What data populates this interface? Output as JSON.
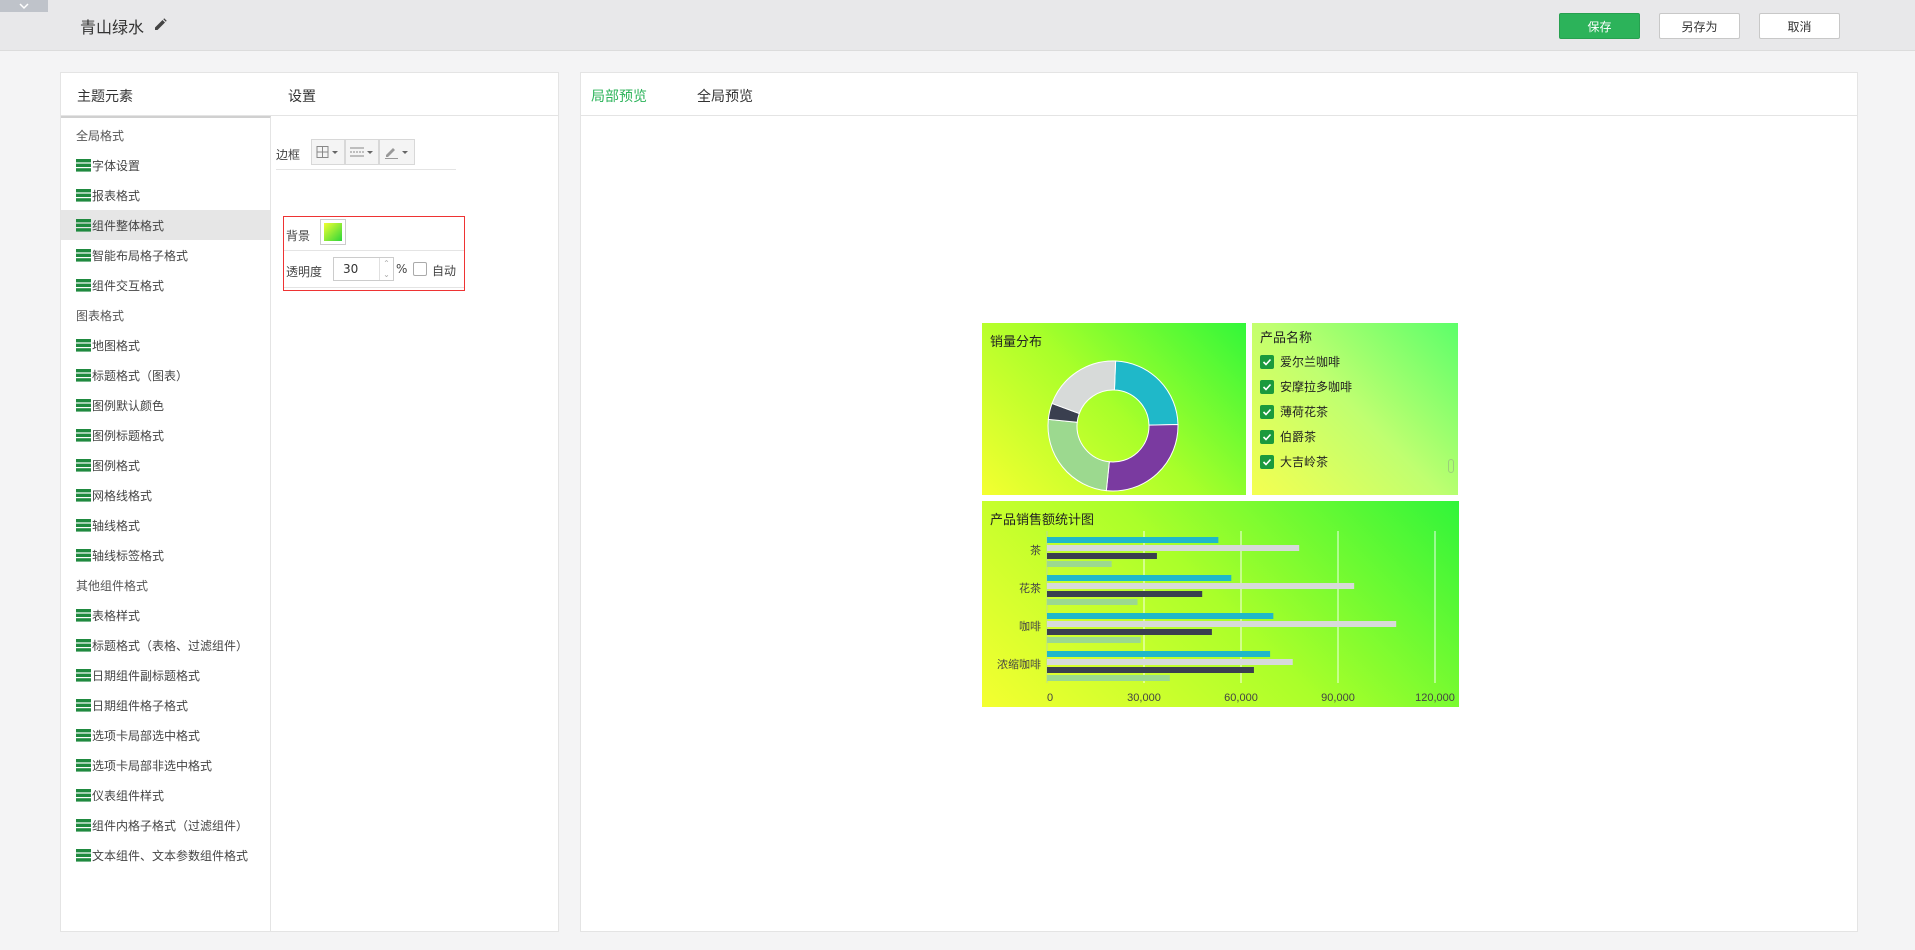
{
  "header": {
    "title": "青山绿水",
    "save_label": "保存",
    "save_as_label": "另存为",
    "cancel_label": "取消"
  },
  "left_panel": {
    "elements_header": "主题元素",
    "settings_header": "设置"
  },
  "tree": [
    {
      "label": "全局格式",
      "type": "group"
    },
    {
      "label": "字体设置",
      "type": "leaf"
    },
    {
      "label": "报表格式",
      "type": "leaf"
    },
    {
      "label": "组件整体格式",
      "type": "leaf",
      "selected": true
    },
    {
      "label": "智能布局格子格式",
      "type": "leaf"
    },
    {
      "label": "组件交互格式",
      "type": "leaf"
    },
    {
      "label": "图表格式",
      "type": "group"
    },
    {
      "label": "地图格式",
      "type": "leaf"
    },
    {
      "label": "标题格式（图表）",
      "type": "leaf"
    },
    {
      "label": "图例默认颜色",
      "type": "leaf"
    },
    {
      "label": "图例标题格式",
      "type": "leaf"
    },
    {
      "label": "图例格式",
      "type": "leaf"
    },
    {
      "label": "网格线格式",
      "type": "leaf"
    },
    {
      "label": "轴线格式",
      "type": "leaf"
    },
    {
      "label": "轴线标签格式",
      "type": "leaf"
    },
    {
      "label": "其他组件格式",
      "type": "group"
    },
    {
      "label": "表格样式",
      "type": "leaf"
    },
    {
      "label": "标题格式（表格、过滤组件）",
      "type": "leaf"
    },
    {
      "label": "日期组件副标题格式",
      "type": "leaf"
    },
    {
      "label": "日期组件格子格式",
      "type": "leaf"
    },
    {
      "label": "选项卡局部选中格式",
      "type": "leaf"
    },
    {
      "label": "选项卡局部非选中格式",
      "type": "leaf"
    },
    {
      "label": "仪表组件样式",
      "type": "leaf"
    },
    {
      "label": "组件内格子格式（过滤组件）",
      "type": "leaf"
    },
    {
      "label": "文本组件、文本参数组件格式",
      "type": "leaf"
    }
  ],
  "settings": {
    "border_label": "边框",
    "background_label": "背景",
    "opacity_label": "透明度",
    "opacity_value": "30",
    "percent_sign": "%",
    "auto_label": "自动",
    "auto_checked": false
  },
  "preview": {
    "tab_local": "局部预览",
    "tab_global": "全局预览",
    "pie_title": "销量分布",
    "filter_title": "产品名称",
    "filter_items": [
      "爱尔兰咖啡",
      "安摩拉多咖啡",
      "薄荷花茶",
      "伯爵茶",
      "大吉岭茶"
    ],
    "bar_title": "产品销售额统计图"
  },
  "colors": {
    "brand_green": "#2cb35a",
    "series_1": "#1fb8c9",
    "series_2": "#d7dad9",
    "series_3": "#3a3f4f",
    "series_4": "#9cd98f",
    "series_5": "#7a3aa0"
  },
  "chart_data": [
    {
      "type": "pie",
      "title": "销量分布",
      "donut": true,
      "slices": [
        {
          "color": "#1fb8c9",
          "value": 24
        },
        {
          "color": "#7a3aa0",
          "value": 27
        },
        {
          "color": "#9cd98f",
          "value": 25
        },
        {
          "color": "#3a3f4f",
          "value": 4
        },
        {
          "color": "#d7dad9",
          "value": 20
        }
      ]
    },
    {
      "type": "bar",
      "orientation": "horizontal",
      "title": "产品销售额统计图",
      "categories": [
        "茶",
        "花茶",
        "咖啡",
        "浓缩咖啡"
      ],
      "xlim": [
        0,
        120000
      ],
      "x_ticks": [
        "0",
        "30,000",
        "60,000",
        "90,000",
        "120,000"
      ],
      "series": [
        {
          "color": "#1fb8c9",
          "values": [
            53000,
            57000,
            70000,
            69000
          ]
        },
        {
          "color": "#d7dad9",
          "values": [
            78000,
            95000,
            108000,
            76000
          ]
        },
        {
          "color": "#3a3f4f",
          "values": [
            34000,
            48000,
            51000,
            64000
          ]
        },
        {
          "color": "#9cd98f",
          "values": [
            20000,
            28000,
            29000,
            38000
          ]
        }
      ]
    }
  ]
}
